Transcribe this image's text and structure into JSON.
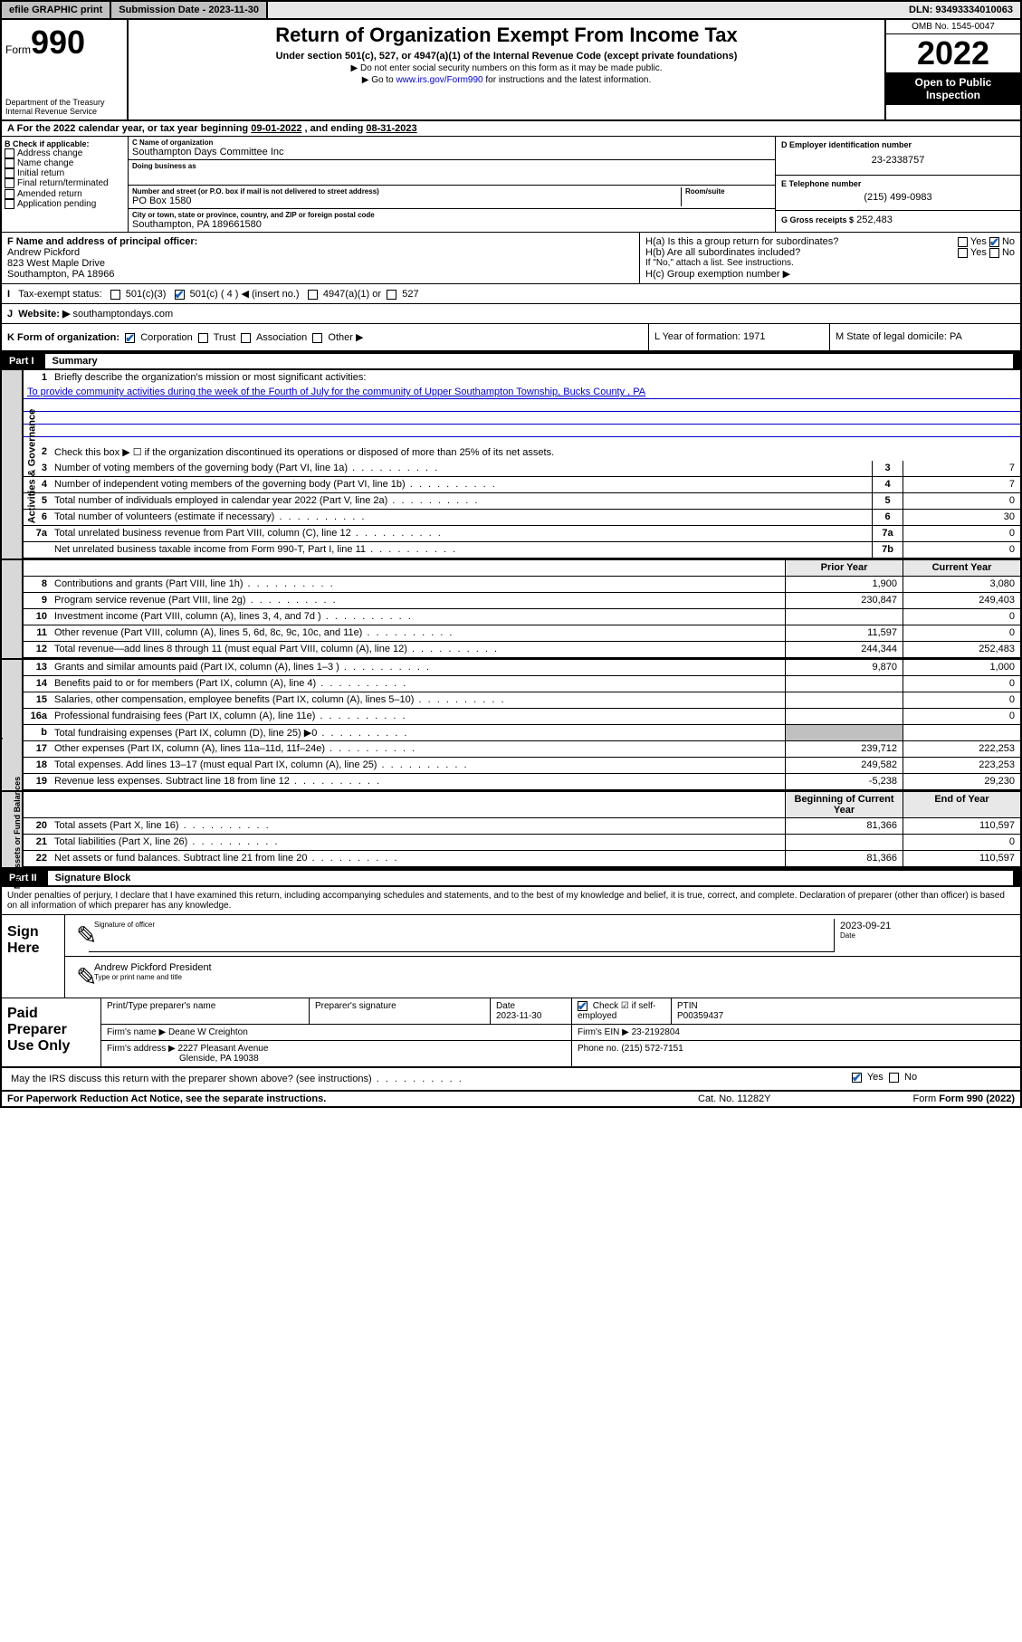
{
  "topbar": {
    "efile": "efile GRAPHIC print",
    "sub_label": "Submission Date - 2023-11-30",
    "dln": "DLN: 93493334010063"
  },
  "header": {
    "form_word": "Form",
    "form_num": "990",
    "dept": "Department of the Treasury Internal Revenue Service",
    "title": "Return of Organization Exempt From Income Tax",
    "sub": "Under section 501(c), 527, or 4947(a)(1) of the Internal Revenue Code (except private foundations)",
    "line1": "▶ Do not enter social security numbers on this form as it may be made public.",
    "line2_pre": "▶ Go to ",
    "line2_link": "www.irs.gov/Form990",
    "line2_post": " for instructions and the latest information.",
    "omb": "OMB No. 1545-0047",
    "year": "2022",
    "open": "Open to Public Inspection"
  },
  "period": {
    "text_pre": "For the 2022 calendar year, or tax year beginning ",
    "begin": "09-01-2022",
    "mid": " , and ending ",
    "end": "08-31-2023"
  },
  "B": {
    "label": "B Check if applicable:",
    "opts": [
      "Address change",
      "Name change",
      "Initial return",
      "Final return/terminated",
      "Amended return",
      "Application pending"
    ]
  },
  "C": {
    "name_lbl": "C Name of organization",
    "name": "Southampton Days Committee Inc",
    "dba_lbl": "Doing business as",
    "dba": "",
    "addr_lbl": "Number and street (or P.O. box if mail is not delivered to street address)",
    "room_lbl": "Room/suite",
    "addr": "PO Box 1580",
    "city_lbl": "City or town, state or province, country, and ZIP or foreign postal code",
    "city": "Southampton, PA  189661580"
  },
  "D": {
    "lbl": "D Employer identification number",
    "val": "23-2338757"
  },
  "E": {
    "lbl": "E Telephone number",
    "val": "(215) 499-0983"
  },
  "G": {
    "lbl": "G Gross receipts $",
    "val": "252,483"
  },
  "F": {
    "lbl": "F Name and address of principal officer:",
    "name": "Andrew Pickford",
    "addr1": "823 West Maple Drive",
    "addr2": "Southampton, PA  18966"
  },
  "H": {
    "a": "H(a)  Is this a group return for subordinates?",
    "b": "H(b)  Are all subordinates included?",
    "b_note": "If \"No,\" attach a list. See instructions.",
    "c": "H(c)  Group exemption number ▶",
    "yes": "Yes",
    "no": "No"
  },
  "I": {
    "lbl": "Tax-exempt status:",
    "c3": "501(c)(3)",
    "c": "501(c) ( 4 ) ◀ (insert no.)",
    "a1": "4947(a)(1) or",
    "s527": "527"
  },
  "J": {
    "lbl": "Website: ▶",
    "val": "southamptondays.com"
  },
  "K": {
    "lbl": "K Form of organization:",
    "opts": [
      "Corporation",
      "Trust",
      "Association",
      "Other ▶"
    ],
    "L": "L Year of formation: 1971",
    "M": "M State of legal domicile: PA"
  },
  "part1": {
    "label": "Part I",
    "title": "Summary"
  },
  "summary": {
    "sections": {
      "gov": "Activities & Governance",
      "rev": "Revenue",
      "exp": "Expenses",
      "net": "Net Assets or Fund Balances"
    },
    "line1_lbl": "Briefly describe the organization's mission or most significant activities:",
    "line1_val": "To provide community activities during the week of the Fourth of July for the community of Upper Southampton Township, Bucks County , PA",
    "line2": "Check this box ▶ ☐  if the organization discontinued its operations or disposed of more than 25% of its net assets.",
    "cols": {
      "prior": "Prior Year",
      "current": "Current Year",
      "begin": "Beginning of Current Year",
      "end": "End of Year"
    },
    "rows_gov": [
      {
        "n": "3",
        "d": "Number of voting members of the governing body (Part VI, line 1a)",
        "box": "3",
        "v": "7"
      },
      {
        "n": "4",
        "d": "Number of independent voting members of the governing body (Part VI, line 1b)",
        "box": "4",
        "v": "7"
      },
      {
        "n": "5",
        "d": "Total number of individuals employed in calendar year 2022 (Part V, line 2a)",
        "box": "5",
        "v": "0"
      },
      {
        "n": "6",
        "d": "Total number of volunteers (estimate if necessary)",
        "box": "6",
        "v": "30"
      },
      {
        "n": "7a",
        "d": "Total unrelated business revenue from Part VIII, column (C), line 12",
        "box": "7a",
        "v": "0"
      },
      {
        "n": "",
        "d": "Net unrelated business taxable income from Form 990-T, Part I, line 11",
        "box": "7b",
        "v": "0"
      }
    ],
    "rows_rev": [
      {
        "n": "8",
        "d": "Contributions and grants (Part VIII, line 1h)",
        "p": "1,900",
        "c": "3,080"
      },
      {
        "n": "9",
        "d": "Program service revenue (Part VIII, line 2g)",
        "p": "230,847",
        "c": "249,403"
      },
      {
        "n": "10",
        "d": "Investment income (Part VIII, column (A), lines 3, 4, and 7d )",
        "p": "",
        "c": "0"
      },
      {
        "n": "11",
        "d": "Other revenue (Part VIII, column (A), lines 5, 6d, 8c, 9c, 10c, and 11e)",
        "p": "11,597",
        "c": "0"
      },
      {
        "n": "12",
        "d": "Total revenue—add lines 8 through 11 (must equal Part VIII, column (A), line 12)",
        "p": "244,344",
        "c": "252,483"
      }
    ],
    "rows_exp": [
      {
        "n": "13",
        "d": "Grants and similar amounts paid (Part IX, column (A), lines 1–3 )",
        "p": "9,870",
        "c": "1,000"
      },
      {
        "n": "14",
        "d": "Benefits paid to or for members (Part IX, column (A), line 4)",
        "p": "",
        "c": "0"
      },
      {
        "n": "15",
        "d": "Salaries, other compensation, employee benefits (Part IX, column (A), lines 5–10)",
        "p": "",
        "c": "0"
      },
      {
        "n": "16a",
        "d": "Professional fundraising fees (Part IX, column (A), line 11e)",
        "p": "",
        "c": "0"
      },
      {
        "n": "b",
        "d": "Total fundraising expenses (Part IX, column (D), line 25) ▶0",
        "p": "",
        "c": "",
        "shade": true
      },
      {
        "n": "17",
        "d": "Other expenses (Part IX, column (A), lines 11a–11d, 11f–24e)",
        "p": "239,712",
        "c": "222,253"
      },
      {
        "n": "18",
        "d": "Total expenses. Add lines 13–17 (must equal Part IX, column (A), line 25)",
        "p": "249,582",
        "c": "223,253"
      },
      {
        "n": "19",
        "d": "Revenue less expenses. Subtract line 18 from line 12",
        "p": "-5,238",
        "c": "29,230"
      }
    ],
    "rows_net": [
      {
        "n": "20",
        "d": "Total assets (Part X, line 16)",
        "p": "81,366",
        "c": "110,597"
      },
      {
        "n": "21",
        "d": "Total liabilities (Part X, line 26)",
        "p": "",
        "c": "0"
      },
      {
        "n": "22",
        "d": "Net assets or fund balances. Subtract line 21 from line 20",
        "p": "81,366",
        "c": "110,597"
      }
    ]
  },
  "part2": {
    "label": "Part II",
    "title": "Signature Block",
    "penalty": "Under penalties of perjury, I declare that I have examined this return, including accompanying schedules and statements, and to the best of my knowledge and belief, it is true, correct, and complete. Declaration of preparer (other than officer) is based on all information of which preparer has any knowledge."
  },
  "sign": {
    "here": "Sign Here",
    "sig_lbl": "Signature of officer",
    "date_lbl": "Date",
    "date": "2023-09-21",
    "name": "Andrew Pickford  President",
    "name_lbl": "Type or print name and title"
  },
  "paid": {
    "label": "Paid Preparer Use Only",
    "h1": "Print/Type preparer's name",
    "h2": "Preparer's signature",
    "h3": "Date",
    "h3v": "2023-11-30",
    "h4": "Check ☑ if self-employed",
    "h5": "PTIN",
    "h5v": "P00359437",
    "firm_lbl": "Firm's name    ▶",
    "firm": "Deane W Creighton",
    "ein_lbl": "Firm's EIN ▶",
    "ein": "23-2192804",
    "addr_lbl": "Firm's address ▶",
    "addr1": "2227 Pleasant Avenue",
    "addr2": "Glenside, PA  19038",
    "phone_lbl": "Phone no.",
    "phone": "(215) 572-7151"
  },
  "discuss": {
    "q": "May the IRS discuss this return with the preparer shown above? (see instructions)",
    "yes": "Yes",
    "no": "No"
  },
  "footer": {
    "left": "For Paperwork Reduction Act Notice, see the separate instructions.",
    "cat": "Cat. No. 11282Y",
    "form": "Form 990 (2022)"
  }
}
